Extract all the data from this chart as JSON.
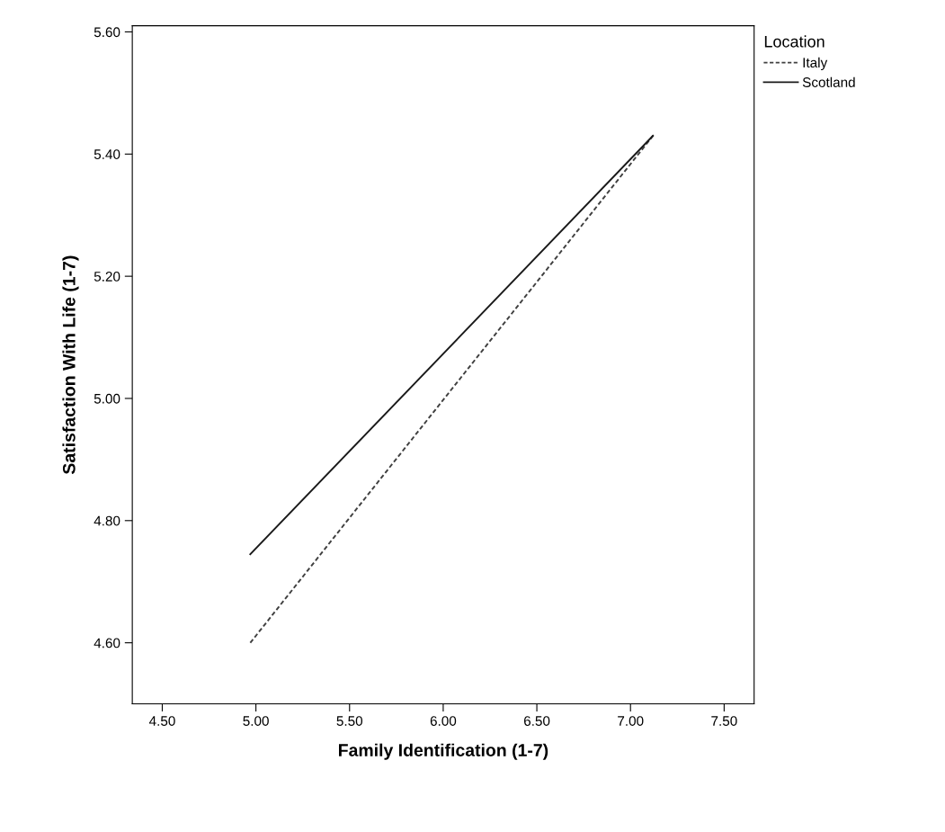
{
  "chart_data": {
    "type": "line",
    "xlabel": "Family Identification (1-7)",
    "ylabel": "Satisfaction With Life (1-7)",
    "legend_title": "Location",
    "xlim": [
      4.34,
      7.66
    ],
    "xticks": [
      {
        "value": 4.5,
        "label": "4.50"
      },
      {
        "value": 5.0,
        "label": "5.00"
      },
      {
        "value": 5.5,
        "label": "5.50"
      },
      {
        "value": 6.0,
        "label": "6.00"
      },
      {
        "value": 6.5,
        "label": "6.50"
      },
      {
        "value": 7.0,
        "label": "7.00"
      },
      {
        "value": 7.5,
        "label": "7.50"
      }
    ],
    "ylim": [
      4.5,
      5.61
    ],
    "yticks": [
      {
        "value": 4.6,
        "label": "4.60"
      },
      {
        "value": 4.8,
        "label": "4.80"
      },
      {
        "value": 5.0,
        "label": "5.00"
      },
      {
        "value": 5.2,
        "label": "5.20"
      },
      {
        "value": 5.4,
        "label": "5.40"
      },
      {
        "value": 5.6,
        "label": "5.60"
      }
    ],
    "legend": "top right",
    "grid": false,
    "x": [
      4.97,
      7.12
    ],
    "series": [
      {
        "name": "Italy",
        "color": "#404040",
        "line_style": "dashed",
        "values": [
          4.6,
          5.43
        ]
      },
      {
        "name": "Scotland",
        "color": "#1a1a1a",
        "line_style": "solid",
        "values": [
          4.745,
          5.43
        ]
      }
    ]
  }
}
